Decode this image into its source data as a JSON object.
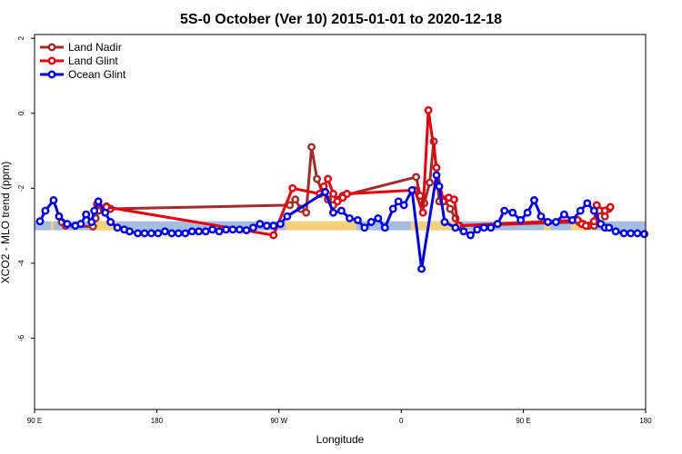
{
  "chart_data": {
    "type": "line",
    "title": "5S-0 October (Ver 10)   2015-01-01 to 2020-12-18",
    "xlabel": "Longitude",
    "ylabel": "XCO2 - MLO trend (ppm)",
    "x_ticks": [
      {
        "value": 90,
        "label": "90 E"
      },
      {
        "value": 180,
        "label": "180"
      },
      {
        "value": 270,
        "label": "90 W"
      },
      {
        "value": 360,
        "label": "0"
      },
      {
        "value": 450,
        "label": "90 E"
      },
      {
        "value": 540,
        "label": "180"
      }
    ],
    "y_ticks": [
      {
        "value": -6,
        "label": "-6"
      },
      {
        "value": -4,
        "label": "-4"
      },
      {
        "value": -2,
        "label": "-2"
      },
      {
        "value": 0,
        "label": "0"
      },
      {
        "value": 2,
        "label": "2"
      }
    ],
    "xlim": [
      90,
      540
    ],
    "ylim": [
      -7.9,
      2.1
    ],
    "grid": false,
    "legend_position": "top-left",
    "band": {
      "ymin": -3.12,
      "ymax": -2.88,
      "sea_color": "#a7bde0",
      "land_color": "#f4d27a"
    },
    "land_ranges": [
      [
        102,
        104
      ],
      [
        133,
        150
      ],
      [
        275,
        327
      ],
      [
        367,
        402
      ],
      [
        465,
        470
      ],
      [
        485,
        503
      ]
    ],
    "series": [
      {
        "name": "Land Nadir",
        "color": "#a52a2a",
        "x": [
          110,
          113,
          133,
          135,
          137,
          143,
          146,
          278,
          282,
          286,
          290,
          294,
          298,
          302,
          306,
          310,
          314,
          317,
          371,
          374,
          377,
          381,
          384,
          388,
          392,
          396,
          400,
          403,
          491,
          494,
          498,
          502,
          506,
          510,
          513
        ],
        "y": [
          -2.9,
          -3.0,
          -3.02,
          -2.8,
          -2.6,
          -2.48,
          -2.55,
          -2.45,
          -2.3,
          -2.55,
          -2.65,
          -0.9,
          -1.75,
          -2.1,
          -2.3,
          -2.45,
          -2.3,
          -2.2,
          -1.7,
          -2.2,
          -2.4,
          -1.85,
          -0.75,
          -2.35,
          -2.3,
          -2.55,
          -2.8,
          -3.0,
          -2.9,
          -2.95,
          -3.0,
          -3.0,
          -2.6,
          -2.75,
          -2.55
        ]
      },
      {
        "name": "Land Glint",
        "color": "#e8000b",
        "x": [
          136,
          143,
          266,
          280,
          300,
          303,
          306,
          310,
          313,
          317,
          320,
          370,
          376,
          380,
          386,
          391,
          395,
          399,
          402,
          490,
          493,
          496,
          502,
          504,
          510,
          514
        ],
        "y": [
          -2.42,
          -2.5,
          -3.25,
          -2.0,
          -2.15,
          -1.95,
          -1.75,
          -2.15,
          -2.35,
          -2.25,
          -2.15,
          -2.05,
          -2.65,
          0.08,
          -1.45,
          -2.35,
          -2.25,
          -2.3,
          -3.0,
          -2.85,
          -2.95,
          -3.0,
          -2.88,
          -2.45,
          -2.6,
          -2.5
        ]
      },
      {
        "name": "Ocean Glint",
        "color": "#0000ee",
        "x": [
          94,
          98,
          104,
          108,
          114,
          120,
          124,
          128,
          132,
          134,
          137,
          142,
          146,
          151,
          156,
          160,
          166,
          171,
          176,
          181,
          186,
          191,
          196,
          201,
          206,
          211,
          216,
          221,
          226,
          231,
          236,
          241,
          246,
          251,
          256,
          261,
          266,
          271,
          276,
          304,
          310,
          316,
          322,
          328,
          333,
          338,
          343,
          348,
          354,
          358,
          362,
          368,
          375,
          386,
          388,
          392,
          400,
          406,
          411,
          416,
          421,
          426,
          431,
          436,
          442,
          448,
          453,
          458,
          463,
          468,
          474,
          480,
          486,
          492,
          497,
          502,
          507,
          510,
          513,
          518,
          524,
          529,
          534,
          539
        ],
        "y": [
          -2.88,
          -2.6,
          -2.32,
          -2.75,
          -2.95,
          -3.0,
          -2.95,
          -2.7,
          -2.9,
          -2.6,
          -2.35,
          -2.65,
          -2.9,
          -3.05,
          -3.1,
          -3.15,
          -3.2,
          -3.2,
          -3.2,
          -3.2,
          -3.15,
          -3.2,
          -3.2,
          -3.2,
          -3.15,
          -3.15,
          -3.15,
          -3.1,
          -3.15,
          -3.1,
          -3.1,
          -3.1,
          -3.12,
          -3.05,
          -2.95,
          -3.0,
          -3.0,
          -2.95,
          -2.75,
          -2.1,
          -2.65,
          -2.6,
          -2.8,
          -2.85,
          -3.05,
          -2.9,
          -2.8,
          -3.05,
          -2.55,
          -2.35,
          -2.45,
          -2.05,
          -4.15,
          -1.65,
          -1.95,
          -2.9,
          -3.05,
          -3.15,
          -3.25,
          -3.1,
          -3.05,
          -3.05,
          -2.95,
          -2.6,
          -2.65,
          -2.85,
          -2.65,
          -2.32,
          -2.75,
          -2.9,
          -2.9,
          -2.7,
          -2.85,
          -2.6,
          -2.4,
          -2.6,
          -2.95,
          -3.05,
          -3.05,
          -3.15,
          -3.2,
          -3.2,
          -3.2,
          -3.22
        ]
      }
    ]
  }
}
